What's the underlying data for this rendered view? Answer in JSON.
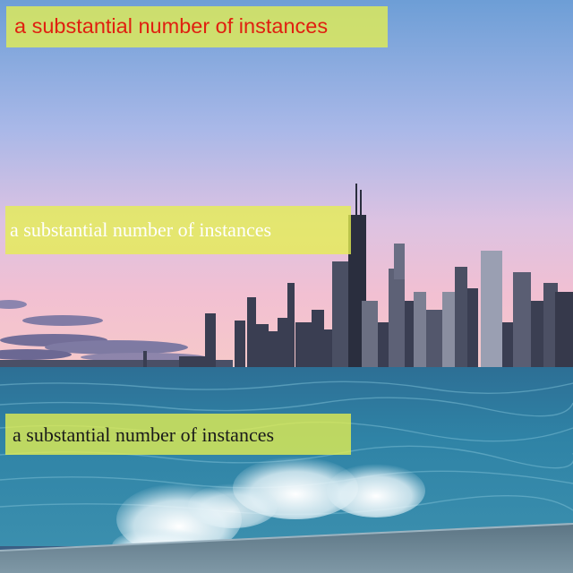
{
  "scene": {
    "description_icon": "city-skyline-waterfront-photo",
    "colors": {
      "sky_top": "#6f9fd6",
      "sky_mid": "#b9bfe6",
      "sky_horizon": "#f0bfd4",
      "water": "#2f7ea0",
      "water_light": "#6fb2c8",
      "foam": "#eef6fa",
      "promenade": "#6e8796",
      "buildings": "#3b3f52"
    }
  },
  "captions": [
    {
      "text": "a substantial number of instances",
      "color": "#e02010",
      "background": "#e6f050"
    },
    {
      "text": "a substantial number of instances",
      "color": "#ffffff",
      "background": "#e6f050"
    },
    {
      "text": "a substantial number of instances",
      "color": "#1a1a1a",
      "background": "#e6f050"
    }
  ]
}
